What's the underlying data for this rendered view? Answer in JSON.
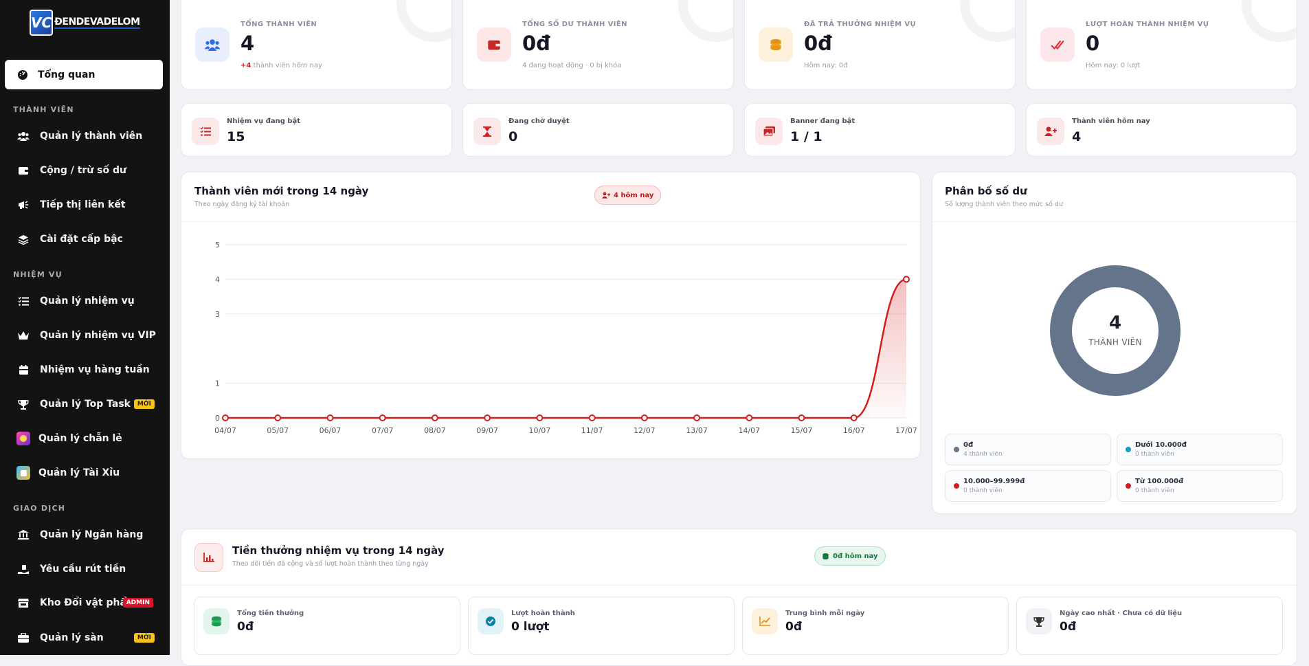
{
  "brand": {
    "logo_letters": "VC",
    "logo_text": "ĐENDEVADELOM"
  },
  "sidebar": {
    "active": {
      "label": "Tổng quan",
      "icon": "dashboard-icon"
    },
    "sections": [
      {
        "title": "THÀNH VIÊN",
        "items": [
          {
            "label": "Quản lý thành viên",
            "icon": "users-icon"
          },
          {
            "label": "Cộng / trừ số dư",
            "icon": "wallet-icon"
          },
          {
            "label": "Tiếp thị liên kết",
            "icon": "megaphone-icon"
          },
          {
            "label": "Cài đặt cấp bậc",
            "icon": "layers-icon"
          }
        ]
      },
      {
        "title": "NHIỆM VỤ",
        "items": [
          {
            "label": "Quản lý nhiệm vụ",
            "icon": "list-check-icon"
          },
          {
            "label": "Quản lý nhiệm vụ VIP",
            "icon": "crown-icon"
          },
          {
            "label": "Nhiệm vụ hàng tuần",
            "icon": "calendar-icon"
          },
          {
            "label": "Quản lý Top Task",
            "icon": "trophy-icon",
            "badge": "MỚI"
          },
          {
            "label": "Quản lý chẵn lẻ",
            "icon": "game-app-icon"
          },
          {
            "label": "Quản lý Tài Xỉu",
            "icon": "dice-app-icon"
          }
        ]
      },
      {
        "title": "GIAO DỊCH",
        "items": [
          {
            "label": "Quản lý Ngân hàng",
            "icon": "bank-icon"
          },
          {
            "label": "Yêu cầu rút tiền",
            "icon": "hand-money-icon"
          },
          {
            "label": "Kho Đổi vật phẩm",
            "icon": "store-icon",
            "badge": "ADMIN"
          },
          {
            "label": "Quản lý sàn",
            "icon": "briefcase-icon",
            "badge": "MỚI"
          }
        ]
      }
    ]
  },
  "stats": [
    {
      "label": "TỔNG THÀNH VIÊN",
      "value": "4",
      "sub_strong": "+4",
      "sub": " thành viên hôm nay",
      "color": "#2b6ee6",
      "icon": "users-icon"
    },
    {
      "label": "TỔNG SỐ DƯ THÀNH VIÊN",
      "value": "0đ",
      "sub_strong": "",
      "sub": "4 đang hoạt động · 0 bị khóa",
      "color": "#d42828",
      "icon": "wallet-icon"
    },
    {
      "label": "ĐÃ TRẢ THƯỞNG NHIỆM VỤ",
      "value": "0đ",
      "sub_strong": "",
      "sub": "Hôm nay: 0đ",
      "color": "#f0a020",
      "icon": "coins-icon"
    },
    {
      "label": "LƯỢT HOÀN THÀNH NHIỆM VỤ",
      "value": "0",
      "sub_strong": "",
      "sub": "Hôm nay: 0 lượt",
      "color": "#e0383e",
      "icon": "double-check-icon"
    }
  ],
  "minis": [
    {
      "label": "Nhiệm vụ đang bật",
      "value": "15",
      "icon": "list-check-icon"
    },
    {
      "label": "Đang chờ duyệt",
      "value": "0",
      "icon": "hourglass-icon"
    },
    {
      "label": "Banner đang bật",
      "value": "1 / 1",
      "icon": "images-icon"
    },
    {
      "label": "Thành viên hôm nay",
      "value": "4",
      "icon": "user-plus-icon"
    }
  ],
  "growth": {
    "title": "Thành viên mới trong 14 ngày",
    "subtitle": "Theo ngày đăng ký tài khoản",
    "pill": "4 hôm nay"
  },
  "chart_data": {
    "type": "area",
    "categories": [
      "04/07",
      "05/07",
      "06/07",
      "07/07",
      "08/07",
      "09/07",
      "10/07",
      "11/07",
      "12/07",
      "13/07",
      "14/07",
      "15/07",
      "16/07",
      "17/07"
    ],
    "series": [
      {
        "values": [
          0,
          0,
          0,
          0,
          0,
          0,
          0,
          0,
          0,
          0,
          0,
          0,
          0,
          4
        ]
      }
    ],
    "yticks": [
      0,
      1,
      3,
      4,
      5
    ],
    "ylim": [
      0,
      5
    ],
    "grid": true,
    "color": "#d41e1e"
  },
  "balance": {
    "title": "Phân bố số dư",
    "subtitle": "Số lượng thành viên theo mức số dư",
    "center_value": "4",
    "center_label": "THÀNH VIÊN",
    "donut_color": "#64748b",
    "legend": [
      {
        "label": "0đ",
        "sub": "4 thành viên",
        "color": "#64748b"
      },
      {
        "label": "Dưới 10.000đ",
        "sub": "0 thành viên",
        "color": "#0e9ec4"
      },
      {
        "label": "10.000–99.999đ",
        "sub": "0 thành viên",
        "color": "#d41e1e"
      },
      {
        "label": "Từ 100.000đ",
        "sub": "0 thành viên",
        "color": "#d41e1e"
      }
    ]
  },
  "rewards": {
    "title": "Tiền thưởng nhiệm vụ trong 14 ngày",
    "subtitle": "Theo dõi tiền đã cộng và số lượt hoàn thành theo từng ngày",
    "pill": "0đ hôm nay",
    "summary": [
      {
        "label": "Tổng tiền thưởng",
        "value": "0đ",
        "icon": "coins-icon"
      },
      {
        "label": "Lượt hoàn thành",
        "value": "0 lượt",
        "icon": "check-circle-icon"
      },
      {
        "label": "Trung bình mỗi ngày",
        "value": "0đ",
        "icon": "trend-icon"
      },
      {
        "label": "Ngày cao nhất · Chưa có dữ liệu",
        "value": "0đ",
        "icon": "trophy-icon"
      }
    ]
  }
}
